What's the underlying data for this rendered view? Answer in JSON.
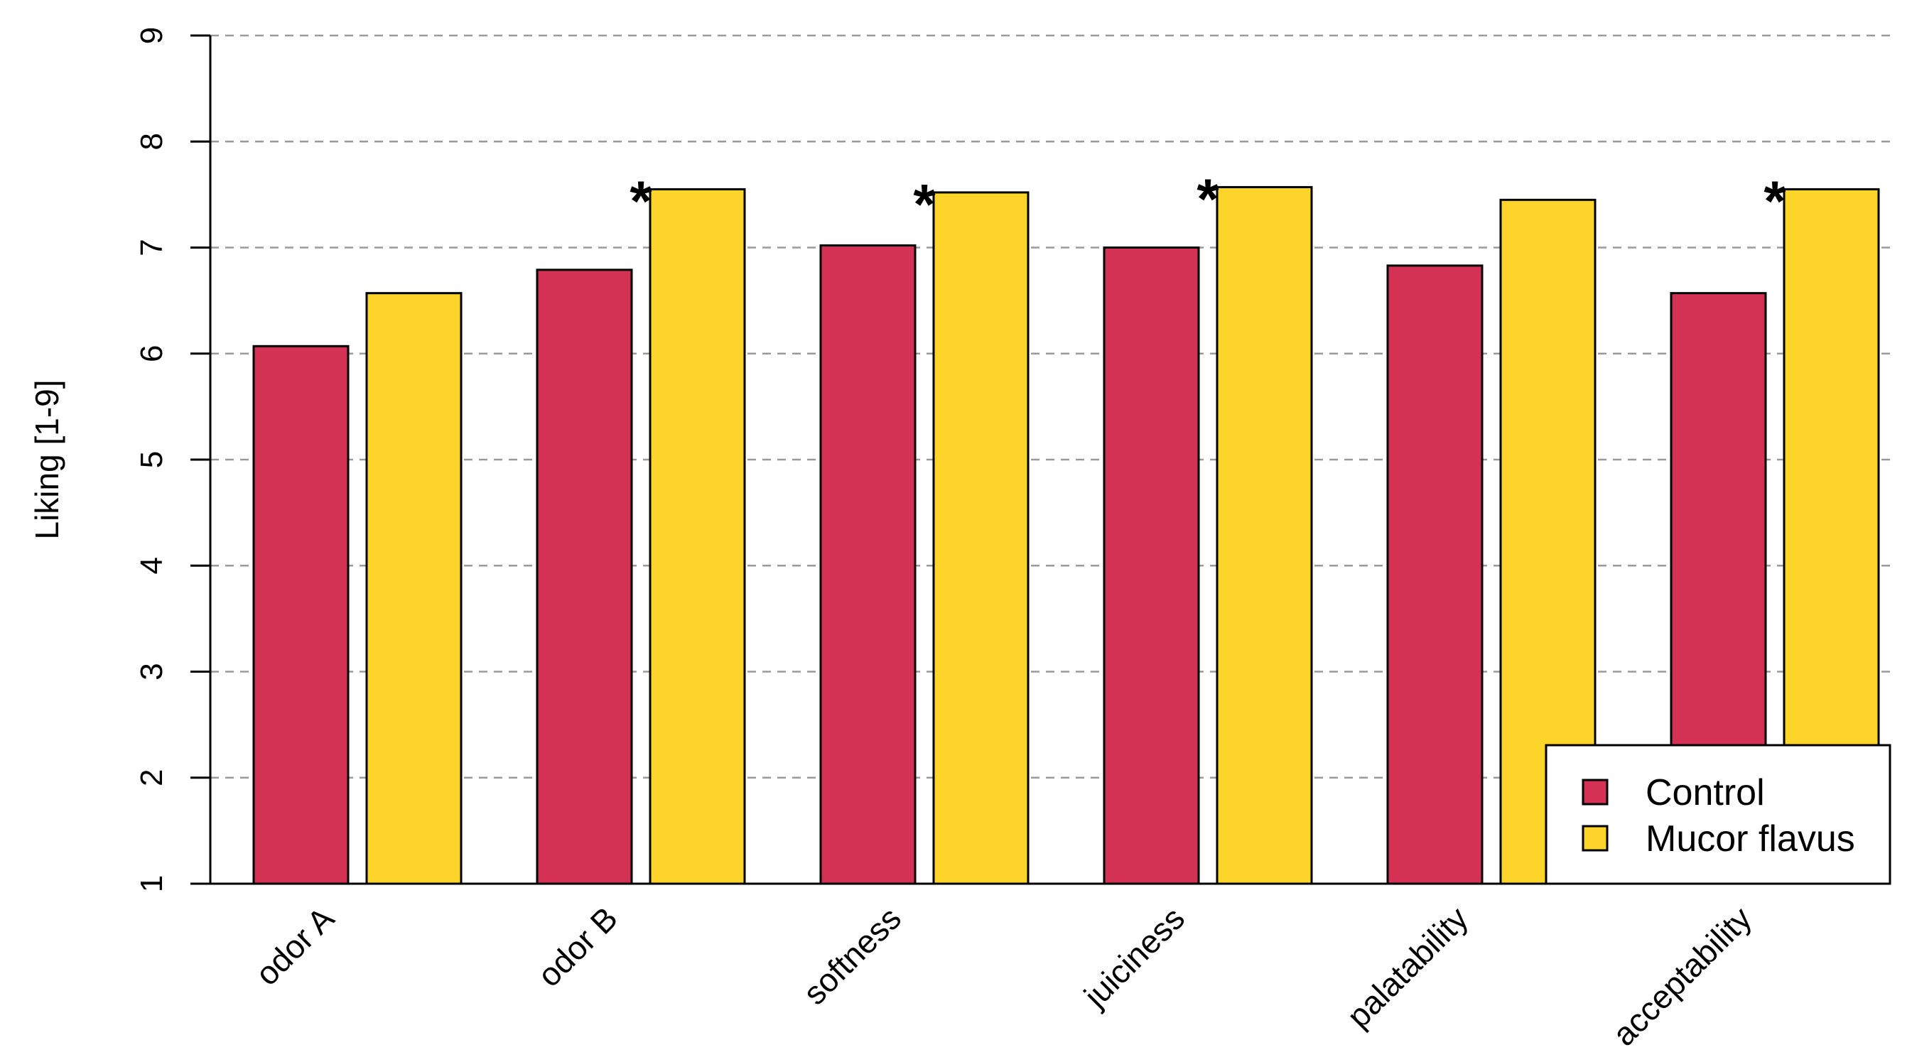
{
  "chart_data": {
    "type": "bar",
    "title": "",
    "xlabel": "",
    "ylabel": "Liking [1-9]",
    "ylim": [
      1,
      9
    ],
    "yticks": [
      "1",
      "2",
      "3",
      "4",
      "5",
      "6",
      "7",
      "8",
      "9"
    ],
    "grid": "horizontal dashed",
    "legend_position": "bottom-right",
    "categories": [
      "odor A",
      "odor B",
      "softness",
      "juiciness",
      "palatability",
      "acceptability"
    ],
    "series": [
      {
        "name": "Control",
        "color": "#D43255",
        "values": [
          6.07,
          6.79,
          7.02,
          7.0,
          6.83,
          6.57
        ]
      },
      {
        "name": "Mucor flavus",
        "color": "#FDD52A",
        "values": [
          6.57,
          7.55,
          7.52,
          7.57,
          7.45,
          7.55
        ]
      }
    ],
    "annotations": [
      {
        "category": "odor B",
        "series": "Mucor flavus",
        "text": "*"
      },
      {
        "category": "softness",
        "series": "Mucor flavus",
        "text": "*"
      },
      {
        "category": "juiciness",
        "series": "Mucor flavus",
        "text": "*"
      },
      {
        "category": "acceptability",
        "series": "Mucor flavus",
        "text": "*"
      }
    ]
  }
}
